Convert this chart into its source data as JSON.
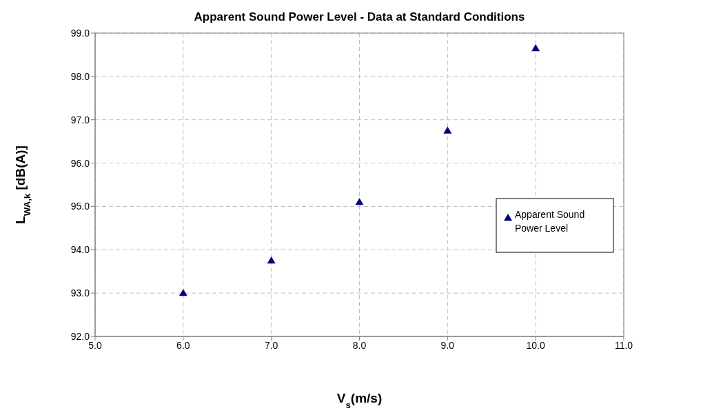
{
  "chart_data": {
    "type": "scatter",
    "title": "Apparent Sound Power Level - Data at Standard Conditions",
    "xlabel": "V$_{s}$(m/s)",
    "ylabel": "L$_{WA,k}$ [dB(A)]",
    "x": [
      6,
      7,
      8,
      9,
      10
    ],
    "series": [
      {
        "name": "Apparent Sound Power Level",
        "color": "#000080",
        "values": [
          93.0,
          93.75,
          95.1,
          96.75,
          98.65
        ]
      }
    ],
    "xlim": [
      5,
      11
    ],
    "xticks": [
      {
        "value": 5,
        "label": "5.0"
      },
      {
        "value": 6,
        "label": "6.0"
      },
      {
        "value": 7,
        "label": "7.0"
      },
      {
        "value": 8,
        "label": "8.0"
      },
      {
        "value": 9,
        "label": "9.0"
      },
      {
        "value": 10,
        "label": "10.0"
      },
      {
        "value": 11,
        "label": "11.0"
      }
    ],
    "ylim": [
      92,
      99
    ],
    "yticks": [
      {
        "value": 92,
        "label": "92.0"
      },
      {
        "value": 93,
        "label": "93.0"
      },
      {
        "value": 94,
        "label": "94.0"
      },
      {
        "value": 95,
        "label": "95.0"
      },
      {
        "value": 96,
        "label": "96.0"
      },
      {
        "value": 97,
        "label": "97.0"
      },
      {
        "value": 98,
        "label": "98.0"
      },
      {
        "value": 99,
        "label": "99.0"
      }
    ],
    "grid": true,
    "legend": "right",
    "marker": "triangle"
  }
}
